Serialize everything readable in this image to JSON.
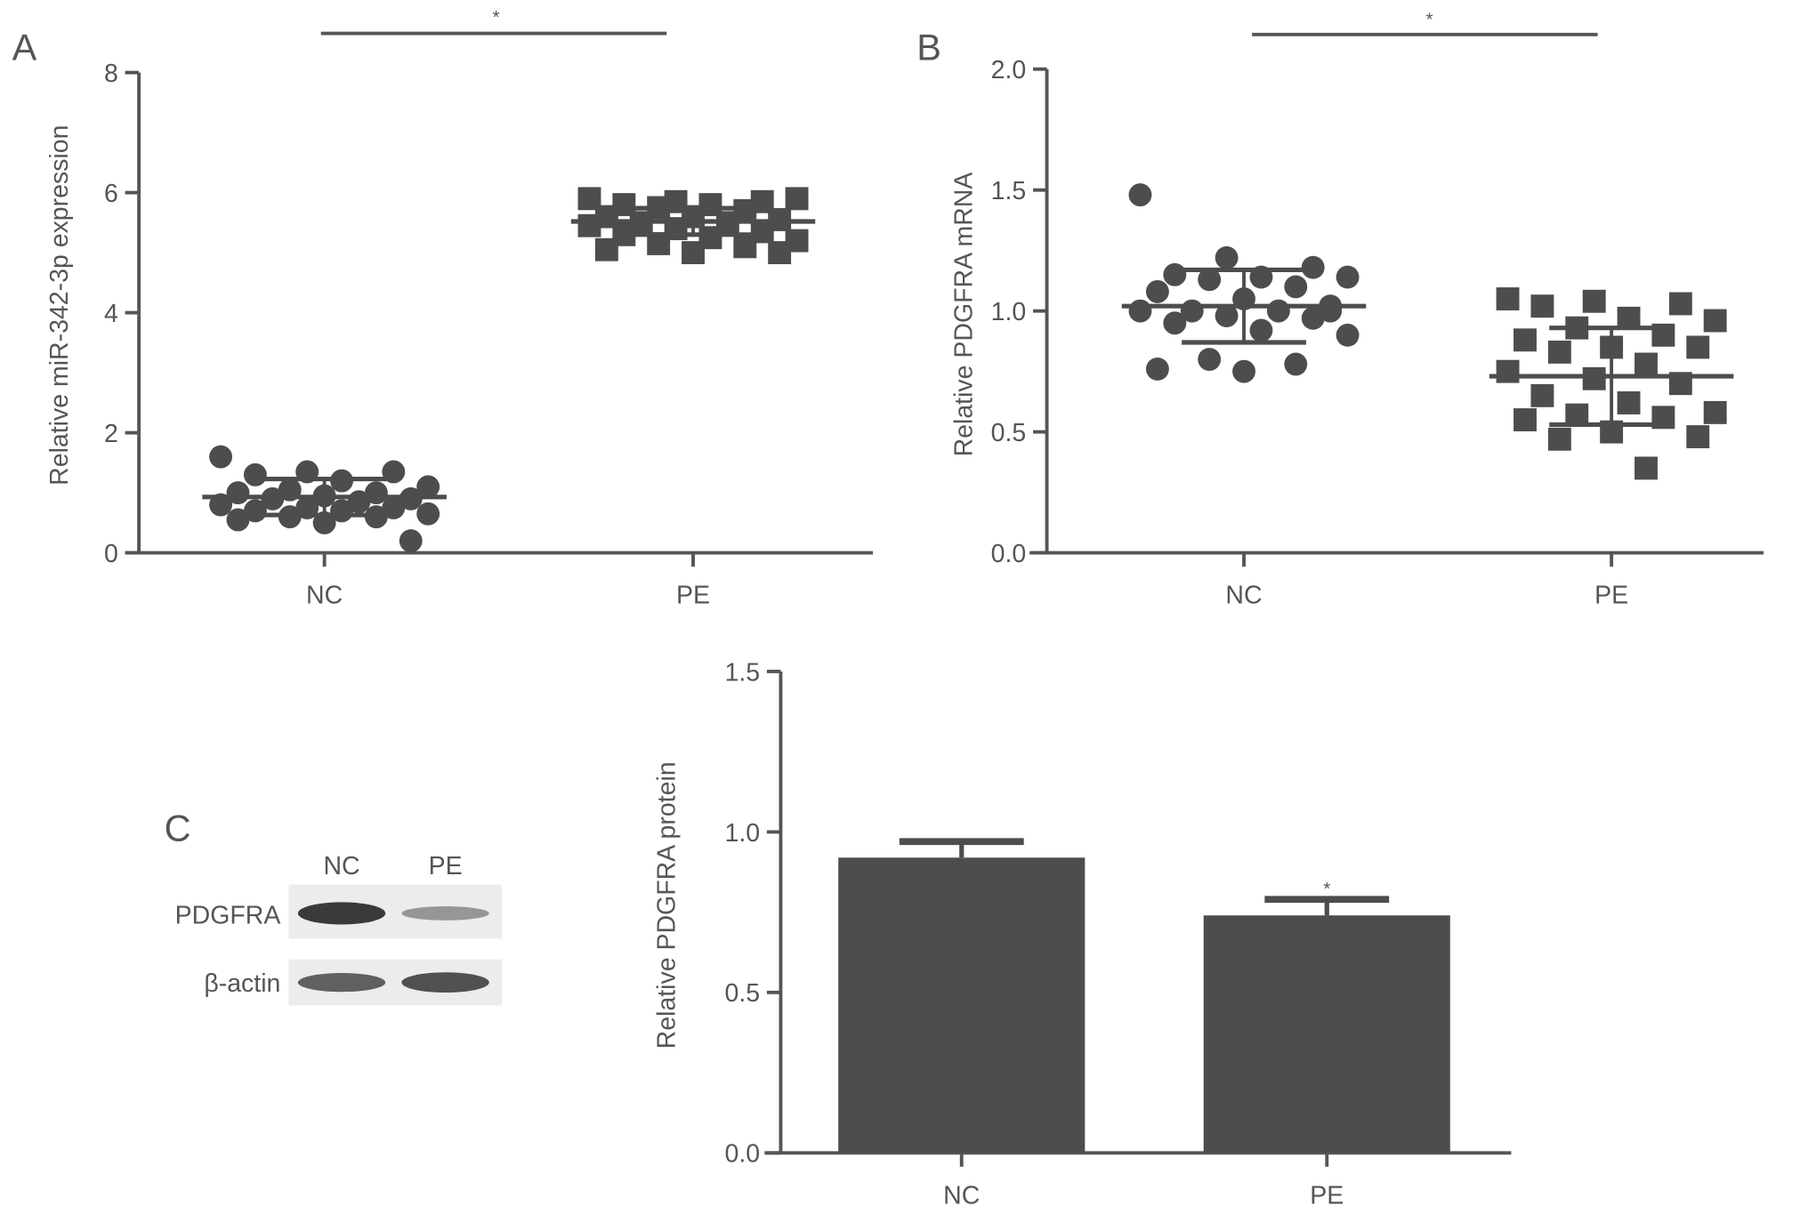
{
  "colors": {
    "mark": "#4d4d4d",
    "axis": "#555555",
    "text": "#555555"
  },
  "chart_data": [
    {
      "panel": "A",
      "type": "scatter",
      "ylabel": "Relative miR-342-3p expression",
      "xlabel": "",
      "ylim": [
        0,
        8
      ],
      "yticks": [
        "0",
        "2",
        "4",
        "6",
        "8"
      ],
      "categories": [
        "NC",
        "PE"
      ],
      "significance": "*",
      "groups": [
        {
          "category": "NC",
          "marker": "circle",
          "mean": 0.93,
          "sd": 0.3,
          "values": [
            1.6,
            1.35,
            1.35,
            1.3,
            1.2,
            1.1,
            1.05,
            1.0,
            1.0,
            0.95,
            0.9,
            0.9,
            0.85,
            0.8,
            0.75,
            0.75,
            0.7,
            0.7,
            0.65,
            0.6,
            0.6,
            0.55,
            0.5,
            0.2
          ]
        },
        {
          "category": "PE",
          "marker": "square",
          "mean": 5.52,
          "sd": 0.22,
          "values": [
            5.9,
            5.85,
            5.85,
            5.8,
            5.8,
            5.9,
            5.75,
            5.7,
            5.6,
            5.6,
            5.55,
            5.5,
            5.5,
            5.45,
            5.4,
            5.35,
            5.3,
            5.25,
            5.2,
            5.15,
            5.1,
            5.05,
            5.0,
            5.0
          ]
        }
      ]
    },
    {
      "panel": "B",
      "type": "scatter",
      "ylabel": "Relative PDGFRA mRNA",
      "xlabel": "",
      "ylim": [
        0,
        2.0
      ],
      "yticks": [
        "0.0",
        "0.5",
        "1.0",
        "1.5",
        "2.0"
      ],
      "categories": [
        "NC",
        "PE"
      ],
      "significance": "*",
      "groups": [
        {
          "category": "NC",
          "marker": "circle",
          "mean": 1.02,
          "sd": 0.15,
          "values": [
            1.48,
            1.22,
            1.18,
            1.15,
            1.14,
            1.14,
            1.13,
            1.1,
            1.08,
            1.05,
            1.02,
            1.0,
            1.0,
            1.0,
            0.98,
            0.97,
            0.95,
            0.92,
            0.9,
            0.8,
            0.78,
            0.76,
            0.75,
            1.0
          ]
        },
        {
          "category": "PE",
          "marker": "square",
          "mean": 0.73,
          "sd": 0.2,
          "values": [
            1.05,
            1.04,
            1.03,
            1.02,
            0.97,
            0.96,
            0.93,
            0.9,
            0.88,
            0.85,
            0.85,
            0.83,
            0.78,
            0.75,
            0.72,
            0.7,
            0.65,
            0.62,
            0.58,
            0.57,
            0.56,
            0.55,
            0.5,
            0.48,
            0.47,
            0.35
          ]
        }
      ]
    },
    {
      "panel": "C",
      "type": "bar",
      "ylabel": "Relative PDGFRA protein",
      "xlabel": "",
      "ylim": [
        0,
        1.5
      ],
      "yticks": [
        "0.0",
        "0.5",
        "1.0",
        "1.5"
      ],
      "categories": [
        "NC",
        "PE"
      ],
      "values": [
        0.92,
        0.74
      ],
      "errors": [
        0.05,
        0.05
      ],
      "annotations": [
        "",
        "*"
      ]
    }
  ],
  "blot": {
    "panel": "C",
    "lanes": [
      "NC",
      "PE"
    ],
    "rows": [
      {
        "label": "PDGFRA",
        "intensity": [
          0.95,
          0.35
        ]
      },
      {
        "label": "β-actin",
        "intensity": [
          0.7,
          0.8
        ]
      }
    ]
  }
}
